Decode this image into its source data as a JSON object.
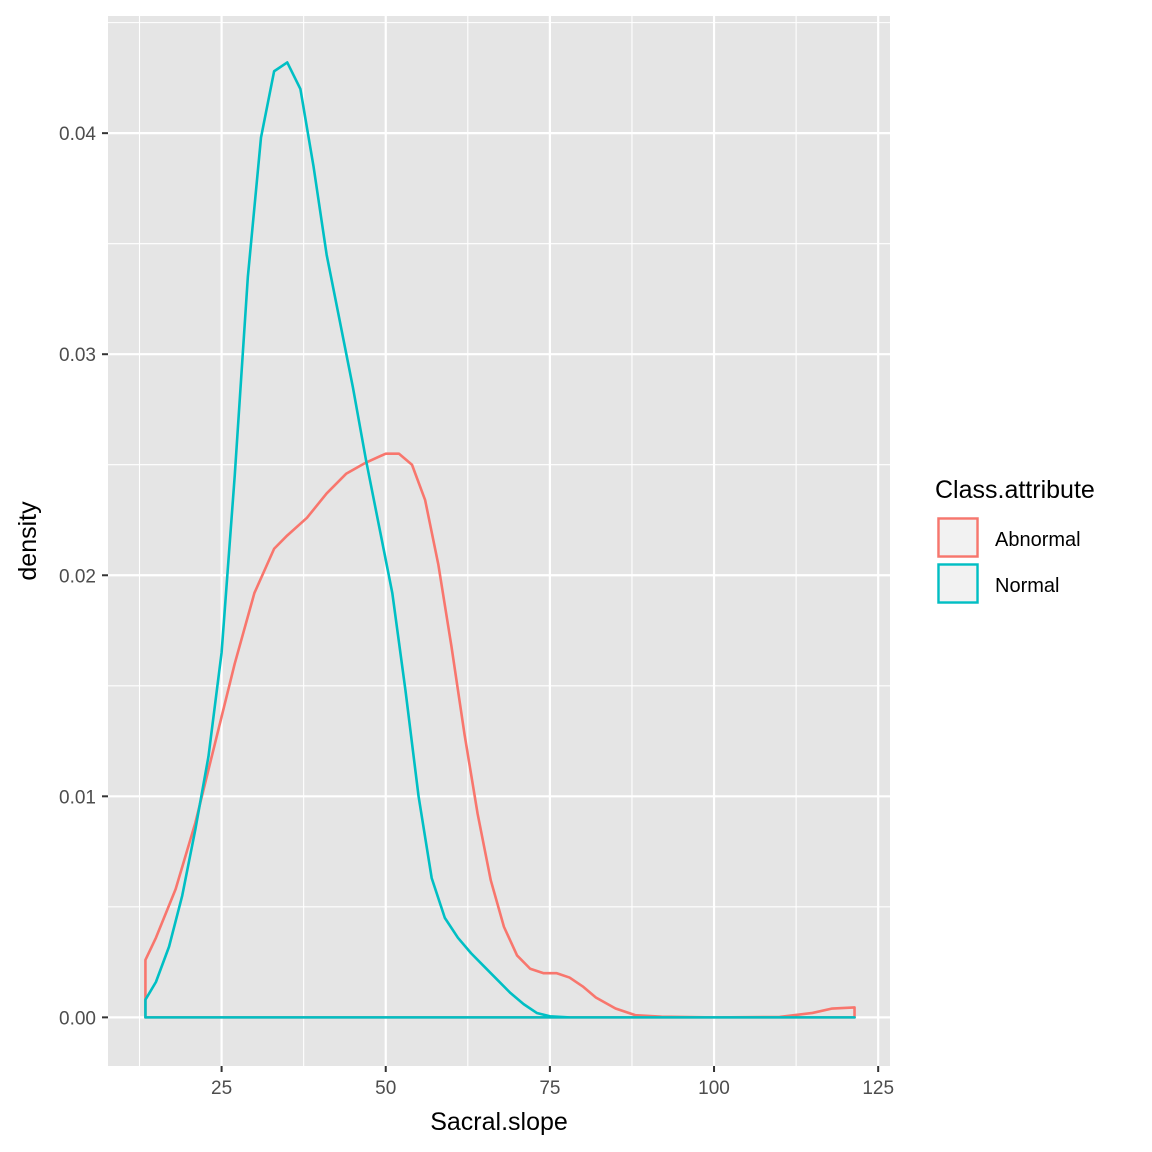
{
  "chart_data": {
    "type": "area",
    "subtype": "density",
    "title": "",
    "xlabel": "Sacral.slope",
    "ylabel": "density",
    "xlim": [
      7.7,
      126.8
    ],
    "ylim": [
      -0.0022,
      0.0453
    ],
    "x_ticks": [
      {
        "value": 25,
        "label": "25"
      },
      {
        "value": 50,
        "label": "50"
      },
      {
        "value": 75,
        "label": "75"
      },
      {
        "value": 100,
        "label": "100"
      },
      {
        "value": 125,
        "label": "125"
      }
    ],
    "y_ticks": [
      {
        "value": 0,
        "label": "0.00"
      },
      {
        "value": 0.01,
        "label": "0.01"
      },
      {
        "value": 0.02,
        "label": "0.02"
      },
      {
        "value": 0.03,
        "label": "0.03"
      },
      {
        "value": 0.04,
        "label": "0.04"
      }
    ],
    "grid": true,
    "background": "#e5e5e5",
    "legend": {
      "title": "Class.attribute",
      "position": "right"
    },
    "series": [
      {
        "name": "Abnormal",
        "color": "#F8766D",
        "x": [
          13.4,
          15,
          18,
          21,
          24,
          27,
          30,
          33,
          35,
          38,
          41,
          44,
          47,
          50,
          52,
          54,
          56,
          58,
          60,
          62,
          64,
          66,
          68,
          70,
          72,
          74,
          76,
          78,
          80,
          82,
          85,
          88,
          92,
          100,
          110,
          115,
          118,
          121.4
        ],
        "y": [
          0.0026,
          0.0036,
          0.0058,
          0.0088,
          0.0124,
          0.016,
          0.0192,
          0.0212,
          0.0218,
          0.0226,
          0.0237,
          0.0246,
          0.0251,
          0.0255,
          0.0255,
          0.025,
          0.0234,
          0.0205,
          0.0168,
          0.0128,
          0.0092,
          0.0062,
          0.0041,
          0.0028,
          0.0022,
          0.002,
          0.002,
          0.0018,
          0.0014,
          0.0009,
          0.0004,
          0.0001,
          3e-05,
          0.0,
          2e-05,
          0.0002,
          0.0004,
          0.00045
        ]
      },
      {
        "name": "Normal",
        "color": "#00BFC4",
        "x": [
          13.4,
          15,
          17,
          19,
          21,
          23,
          25,
          27,
          29,
          31,
          33,
          35,
          37,
          39,
          41,
          43,
          45,
          47,
          49,
          51,
          53,
          55,
          57,
          59,
          61,
          63,
          65,
          67,
          69,
          71,
          73,
          75,
          78,
          85,
          100,
          121.4
        ],
        "y": [
          0.0008,
          0.0016,
          0.0032,
          0.0055,
          0.0085,
          0.0118,
          0.0165,
          0.0245,
          0.0335,
          0.0398,
          0.0428,
          0.0432,
          0.042,
          0.0385,
          0.0345,
          0.0315,
          0.0285,
          0.0252,
          0.0222,
          0.0192,
          0.0148,
          0.01,
          0.0063,
          0.0045,
          0.0036,
          0.0029,
          0.0023,
          0.0017,
          0.0011,
          0.0006,
          0.0002,
          5e-05,
          0.0,
          0.0,
          0.0,
          0.0
        ]
      }
    ]
  }
}
